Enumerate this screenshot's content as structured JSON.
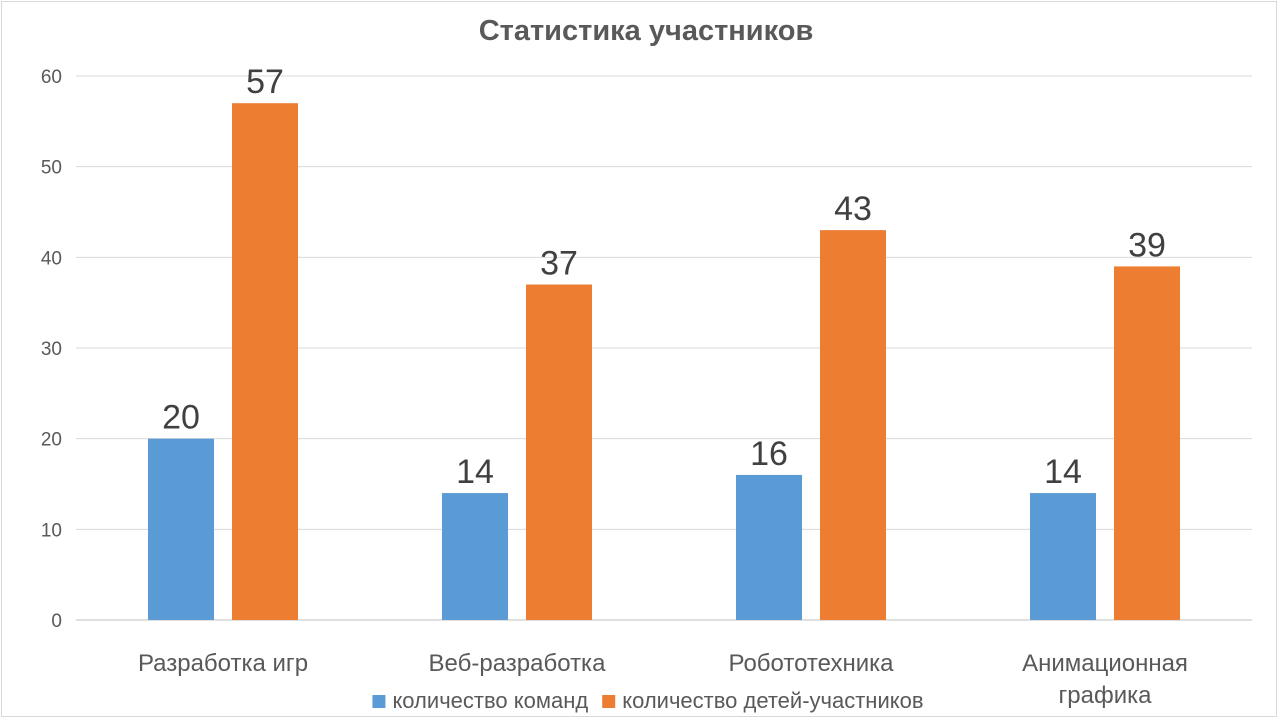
{
  "chart_data": {
    "type": "bar",
    "title": "Статистика участников",
    "categories": [
      [
        "Разработка игр"
      ],
      [
        "Веб-разработка"
      ],
      [
        "Робототехника"
      ],
      [
        "Анимационная",
        "графика"
      ]
    ],
    "series": [
      {
        "name": "количество команд",
        "color": "#5b9bd5",
        "values": [
          20,
          14,
          16,
          14
        ]
      },
      {
        "name": "количество детей-участников",
        "color": "#ed7d31",
        "values": [
          57,
          37,
          43,
          39
        ]
      }
    ],
    "ylim": [
      0,
      60
    ],
    "yticks": [
      0,
      10,
      20,
      30,
      40,
      50,
      60
    ],
    "grid": true,
    "legend_position": "bottom",
    "data_labels": true
  }
}
